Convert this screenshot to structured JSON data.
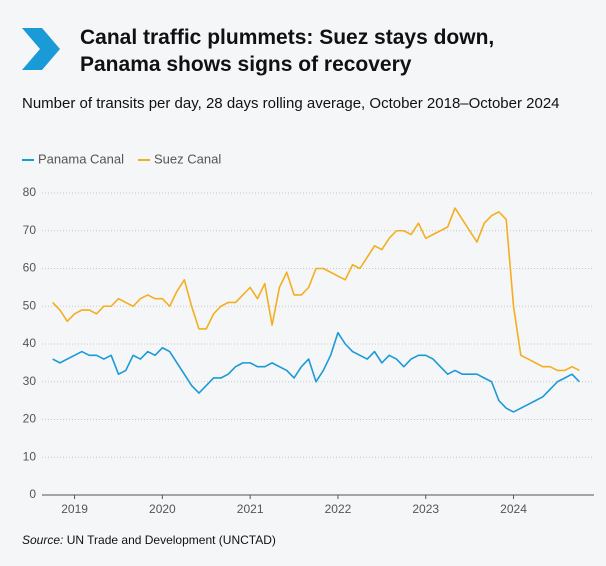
{
  "chart_data": {
    "type": "line",
    "title": "Canal traffic plummets: Suez stays down, Panama shows signs of recovery",
    "subtitle": "Number of transits per day, 28 days rolling average, October 2018–October 2024",
    "source_label": "Source:",
    "source": "UN Trade and Development (UNCTAD)",
    "x": [
      "2018-10",
      "2018-11",
      "2018-12",
      "2019-01",
      "2019-02",
      "2019-03",
      "2019-04",
      "2019-05",
      "2019-06",
      "2019-07",
      "2019-08",
      "2019-09",
      "2019-10",
      "2019-11",
      "2019-12",
      "2020-01",
      "2020-02",
      "2020-03",
      "2020-04",
      "2020-05",
      "2020-06",
      "2020-07",
      "2020-08",
      "2020-09",
      "2020-10",
      "2020-11",
      "2020-12",
      "2021-01",
      "2021-02",
      "2021-03",
      "2021-04",
      "2021-05",
      "2021-06",
      "2021-07",
      "2021-08",
      "2021-09",
      "2021-10",
      "2021-11",
      "2021-12",
      "2022-01",
      "2022-02",
      "2022-03",
      "2022-04",
      "2022-05",
      "2022-06",
      "2022-07",
      "2022-08",
      "2022-09",
      "2022-10",
      "2022-11",
      "2022-12",
      "2023-01",
      "2023-02",
      "2023-03",
      "2023-04",
      "2023-05",
      "2023-06",
      "2023-07",
      "2023-08",
      "2023-09",
      "2023-10",
      "2023-11",
      "2023-12",
      "2024-01",
      "2024-02",
      "2024-03",
      "2024-04",
      "2024-05",
      "2024-06",
      "2024-07",
      "2024-08",
      "2024-09",
      "2024-10"
    ],
    "series": [
      {
        "name": "Panama Canal",
        "color": "#1a9ad6",
        "values": [
          36,
          35,
          36,
          37,
          38,
          37,
          37,
          36,
          37,
          32,
          33,
          37,
          36,
          38,
          37,
          39,
          38,
          35,
          32,
          29,
          27,
          29,
          31,
          31,
          32,
          34,
          35,
          35,
          34,
          34,
          35,
          34,
          33,
          31,
          34,
          36,
          30,
          33,
          37,
          43,
          40,
          38,
          37,
          36,
          38,
          35,
          37,
          36,
          34,
          36,
          37,
          37,
          36,
          34,
          32,
          33,
          32,
          32,
          32,
          31,
          30,
          25,
          23,
          22,
          23,
          24,
          25,
          26,
          28,
          30,
          31,
          32,
          30
        ]
      },
      {
        "name": "Suez Canal",
        "color": "#f5ae1f",
        "values": [
          51,
          49,
          46,
          48,
          49,
          49,
          48,
          50,
          50,
          52,
          51,
          50,
          52,
          53,
          52,
          52,
          50,
          54,
          57,
          50,
          44,
          44,
          48,
          50,
          51,
          51,
          53,
          55,
          52,
          56,
          45,
          55,
          59,
          53,
          53,
          55,
          60,
          60,
          59,
          58,
          57,
          61,
          60,
          63,
          66,
          65,
          68,
          70,
          70,
          69,
          72,
          68,
          69,
          70,
          71,
          76,
          73,
          70,
          67,
          72,
          74,
          75,
          73,
          50,
          37,
          36,
          35,
          34,
          34,
          33,
          33,
          34,
          33
        ]
      }
    ],
    "xlim": [
      "2018-08",
      "2024-12"
    ],
    "xticks": [
      {
        "value": "2019-01",
        "label": "2019"
      },
      {
        "value": "2020-01",
        "label": "2020"
      },
      {
        "value": "2021-01",
        "label": "2021"
      },
      {
        "value": "2022-01",
        "label": "2022"
      },
      {
        "value": "2023-01",
        "label": "2023"
      },
      {
        "value": "2024-01",
        "label": "2024"
      }
    ],
    "ylim": [
      0,
      80
    ],
    "yticks": [
      0,
      10,
      20,
      30,
      40,
      50,
      60,
      70,
      80
    ],
    "grid": true,
    "legend": "top-left"
  }
}
